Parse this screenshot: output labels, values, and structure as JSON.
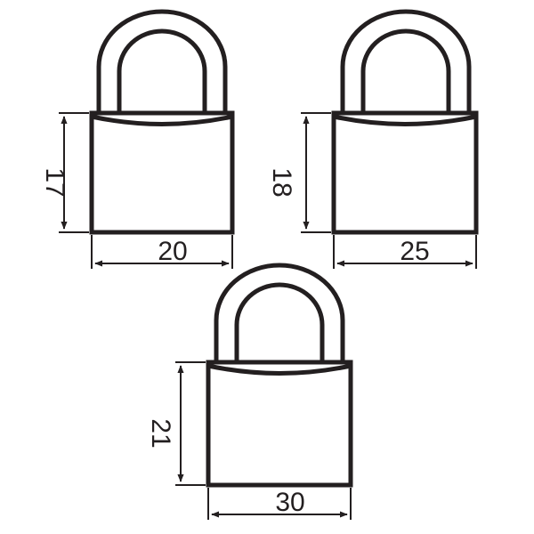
{
  "colors": {
    "stroke": "#231f20",
    "shackle_fill": "#ffffff",
    "background": "#ffffff"
  },
  "padlocks": [
    {
      "name": "padlock-1",
      "icon": "padlock-icon",
      "height_label": "17",
      "width_label": "20"
    },
    {
      "name": "padlock-2",
      "icon": "padlock-icon",
      "height_label": "18",
      "width_label": "25"
    },
    {
      "name": "padlock-3",
      "icon": "padlock-icon",
      "height_label": "21",
      "width_label": "30"
    }
  ]
}
